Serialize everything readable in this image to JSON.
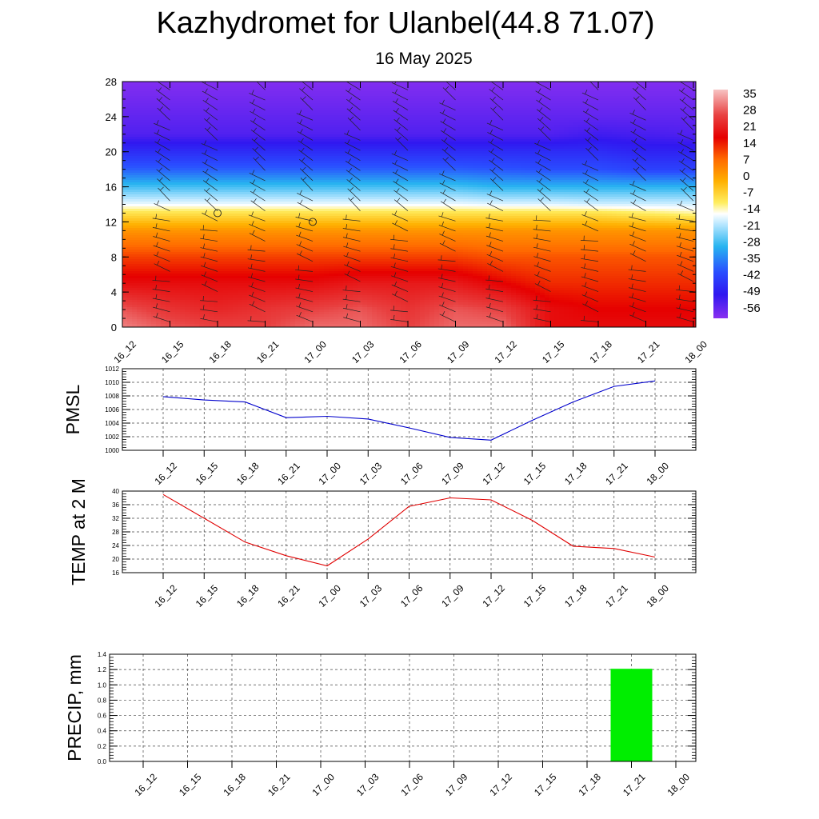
{
  "title": "Kazhydromet for Ulanbel(44.8 71.07)",
  "subtitle": "16 May 2025",
  "chart_data": [
    {
      "type": "heatmap",
      "name": "temperature-height-section",
      "x_labels": [
        "16_12",
        "16_15",
        "16_18",
        "16_21",
        "17_00",
        "17_03",
        "17_06",
        "17_09",
        "17_12",
        "17_15",
        "17_18",
        "17_21",
        "18_00"
      ],
      "y_ticks": [
        0,
        4,
        8,
        12,
        16,
        20,
        24,
        28
      ],
      "ylim": [
        0,
        28
      ],
      "colorbar_labels": [
        "35",
        "28",
        "21",
        "14",
        "7",
        "0",
        "-7",
        "-14",
        "-21",
        "-28",
        "-35",
        "-42",
        "-49",
        "-56"
      ],
      "colorbar_range": [
        -63,
        42
      ],
      "color_stops": [
        {
          "v": 42,
          "c": "#f7c3c3"
        },
        {
          "v": 30,
          "c": "#e84040"
        },
        {
          "v": 20,
          "c": "#e60000"
        },
        {
          "v": 10,
          "c": "#ff6a00"
        },
        {
          "v": 0,
          "c": "#ffb000"
        },
        {
          "v": -10,
          "c": "#ffee60"
        },
        {
          "v": -15,
          "c": "#ffffff"
        },
        {
          "v": -20,
          "c": "#b6e6ff"
        },
        {
          "v": -30,
          "c": "#28b4f0"
        },
        {
          "v": -42,
          "c": "#2a4cff"
        },
        {
          "v": -52,
          "c": "#3018f0"
        },
        {
          "v": -63,
          "c": "#8a30f0"
        }
      ],
      "level_temperatures": [
        {
          "h": 0,
          "t": [
            36,
            32,
            30,
            30,
            34,
            34,
            30,
            34,
            34,
            22,
            22,
            22,
            22
          ]
        },
        {
          "h": 2,
          "t": [
            32,
            28,
            26,
            28,
            30,
            32,
            28,
            32,
            30,
            22,
            20,
            20,
            20
          ]
        },
        {
          "h": 5,
          "t": [
            22,
            22,
            22,
            22,
            22,
            24,
            24,
            24,
            20,
            16,
            16,
            16,
            16
          ]
        },
        {
          "h": 8,
          "t": [
            14,
            14,
            14,
            14,
            14,
            14,
            14,
            14,
            12,
            12,
            12,
            12,
            12
          ]
        },
        {
          "h": 11,
          "t": [
            4,
            4,
            4,
            4,
            4,
            4,
            4,
            4,
            4,
            4,
            4,
            4,
            4
          ]
        },
        {
          "h": 13,
          "t": [
            -8,
            -8,
            -8,
            -8,
            -8,
            -8,
            -8,
            -8,
            -8,
            -8,
            -8,
            -10,
            -12
          ]
        },
        {
          "h": 14,
          "t": [
            -16,
            -16,
            -16,
            -16,
            -16,
            -16,
            -16,
            -16,
            -17,
            -17,
            -18,
            -18,
            -18
          ]
        },
        {
          "h": 16,
          "t": [
            -28,
            -28,
            -28,
            -28,
            -28,
            -28,
            -28,
            -28,
            -30,
            -30,
            -30,
            -30,
            -30
          ]
        },
        {
          "h": 18,
          "t": [
            -40,
            -40,
            -40,
            -40,
            -40,
            -40,
            -40,
            -40,
            -41,
            -42,
            -42,
            -44,
            -44
          ]
        },
        {
          "h": 20,
          "t": [
            -48,
            -48,
            -48,
            -48,
            -48,
            -48,
            -48,
            -48,
            -48,
            -48,
            -48,
            -50,
            -50
          ]
        },
        {
          "h": 22,
          "t": [
            -56,
            -56,
            -56,
            -56,
            -56,
            -56,
            -56,
            -56,
            -56,
            -56,
            -54,
            -55,
            -56
          ]
        },
        {
          "h": 24,
          "t": [
            -58,
            -58,
            -58,
            -58,
            -58,
            -58,
            -58,
            -58,
            -58,
            -58,
            -58,
            -58,
            -58
          ]
        },
        {
          "h": 28,
          "t": [
            -62,
            -62,
            -62,
            -62,
            -62,
            -62,
            -62,
            -62,
            -62,
            -62,
            -62,
            -62,
            -62
          ]
        }
      ]
    },
    {
      "type": "line",
      "name": "pmsl",
      "ylabel": "PMSL",
      "x_labels": [
        "16_12",
        "16_15",
        "16_18",
        "16_21",
        "17_00",
        "17_03",
        "17_06",
        "17_09",
        "17_12",
        "17_15",
        "17_18",
        "17_21",
        "18_00"
      ],
      "y_ticks": [
        1000,
        1002,
        1004,
        1006,
        1008,
        1010,
        1012
      ],
      "ylim": [
        1000,
        1012
      ],
      "values": [
        1007.9,
        1007.4,
        1007.1,
        1004.8,
        1005.0,
        1004.6,
        1003.3,
        1001.9,
        1001.5,
        1004.4,
        1007.1,
        1009.4,
        1010.2
      ],
      "color": "#0000cc"
    },
    {
      "type": "line",
      "name": "temp-2m",
      "ylabel": "TEMP at 2 M",
      "x_labels": [
        "16_12",
        "16_15",
        "16_18",
        "16_21",
        "17_00",
        "17_03",
        "17_06",
        "17_09",
        "17_12",
        "17_15",
        "17_18",
        "17_21",
        "18_00"
      ],
      "y_ticks": [
        16,
        20,
        24,
        28,
        32,
        36,
        40
      ],
      "ylim": [
        16,
        40
      ],
      "values": [
        39.0,
        32.0,
        25.0,
        21.0,
        18.0,
        25.9,
        35.5,
        38.0,
        37.4,
        31.4,
        23.8,
        23.1,
        20.6
      ],
      "color": "#e00000"
    },
    {
      "type": "bar",
      "name": "precip",
      "ylabel": "PRECIP, mm",
      "x_labels": [
        "16_12",
        "16_15",
        "16_18",
        "16_21",
        "17_00",
        "17_03",
        "17_06",
        "17_09",
        "17_12",
        "17_15",
        "17_18",
        "17_21",
        "18_00"
      ],
      "y_ticks": [
        "0.0",
        "0.2",
        "0.4",
        "0.6",
        "0.8",
        "1.0",
        "1.2",
        "1.4"
      ],
      "ylim": [
        0,
        1.4
      ],
      "values": [
        0,
        0,
        0,
        0,
        0,
        0,
        0,
        0,
        0,
        0,
        0,
        1.21,
        0
      ],
      "color": "#00ee00"
    }
  ]
}
